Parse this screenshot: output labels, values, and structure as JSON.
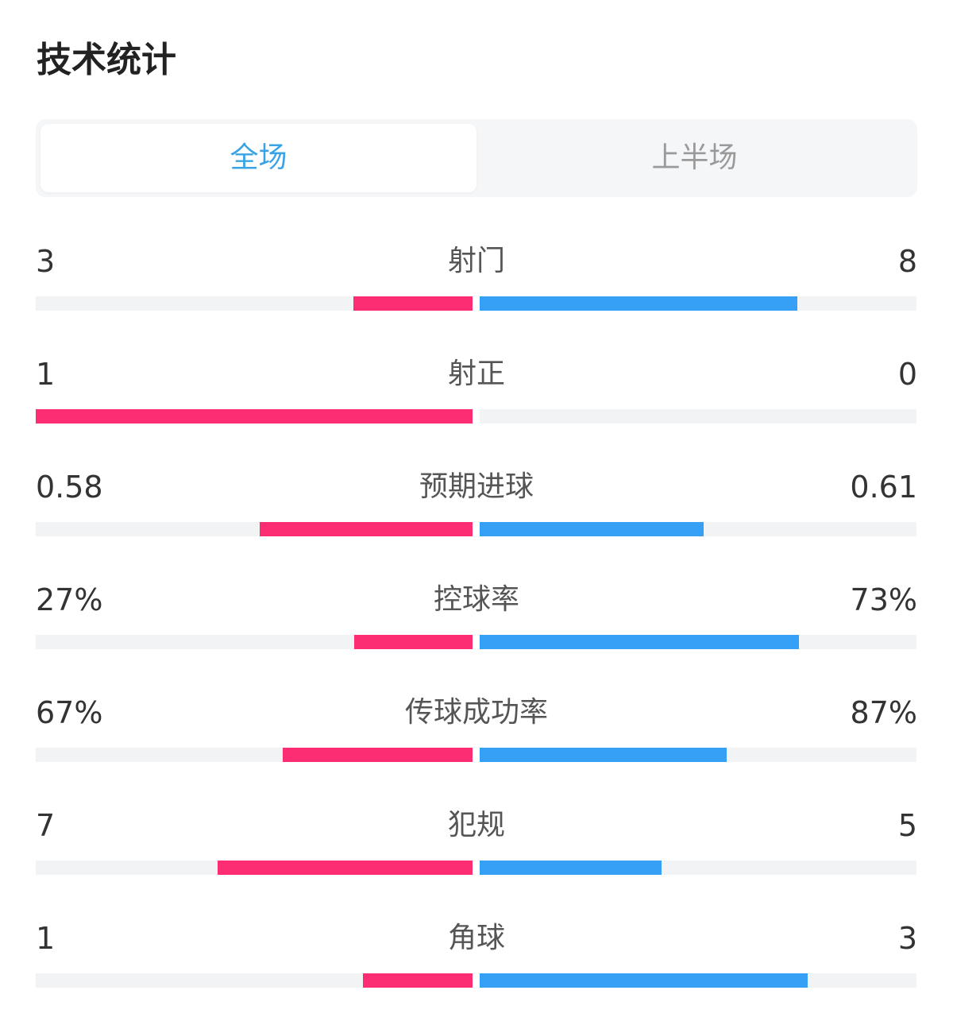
{
  "header": {
    "title": "技术统计"
  },
  "tabs": [
    {
      "label": "全场",
      "active": true
    },
    {
      "label": "上半场",
      "active": false
    }
  ],
  "colors": {
    "home": "#fc2d73",
    "away": "#36a0f6",
    "track": "#f2f3f5",
    "tab_active": "#3aa3e6",
    "tab_inactive": "#9a9a9a"
  },
  "stats": [
    {
      "label": "射门",
      "home": "3",
      "away": "8",
      "home_fill": 0.273,
      "away_fill": 0.727
    },
    {
      "label": "射正",
      "home": "1",
      "away": "0",
      "home_fill": 1.0,
      "away_fill": 0.0
    },
    {
      "label": "预期进球",
      "home": "0.58",
      "away": "0.61",
      "home_fill": 0.487,
      "away_fill": 0.513
    },
    {
      "label": "控球率",
      "home": "27%",
      "away": "73%",
      "home_fill": 0.27,
      "away_fill": 0.73
    },
    {
      "label": "传球成功率",
      "home": "67%",
      "away": "87%",
      "home_fill": 0.435,
      "away_fill": 0.565
    },
    {
      "label": "犯规",
      "home": "7",
      "away": "5",
      "home_fill": 0.583,
      "away_fill": 0.417
    },
    {
      "label": "角球",
      "home": "1",
      "away": "3",
      "home_fill": 0.25,
      "away_fill": 0.75
    }
  ]
}
